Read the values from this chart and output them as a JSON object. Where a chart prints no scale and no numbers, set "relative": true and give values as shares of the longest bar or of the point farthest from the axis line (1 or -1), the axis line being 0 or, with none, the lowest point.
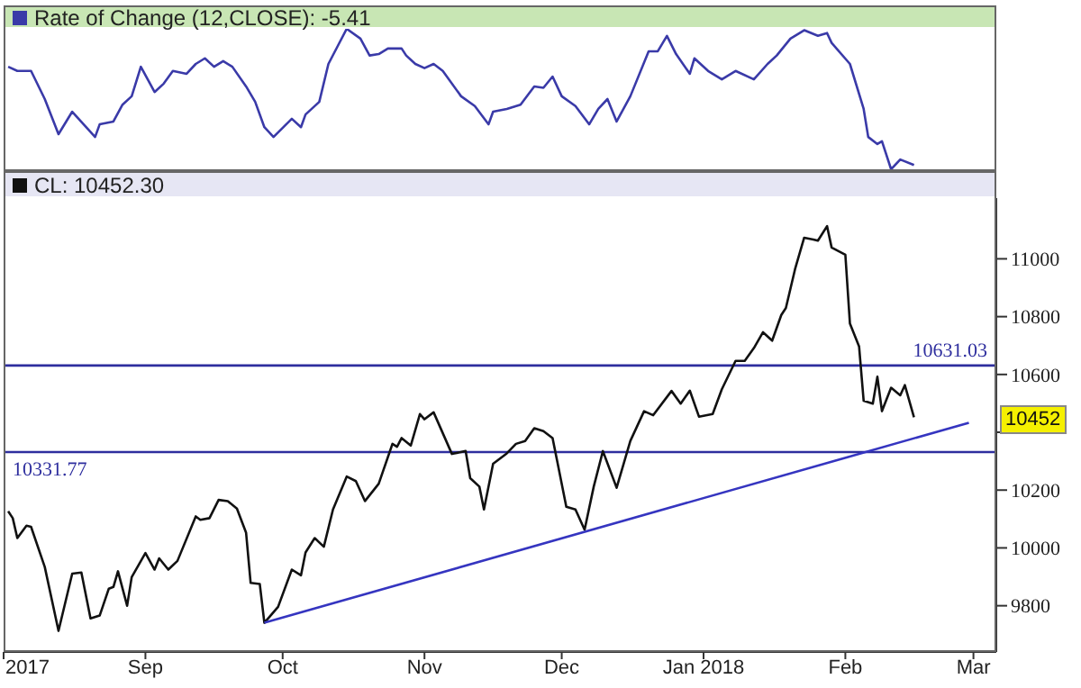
{
  "chart_data": [
    {
      "type": "line",
      "title": "Rate of Change (12,CLOSE): -5.41",
      "relative": true,
      "xlim": [
        "2017-08-01",
        "2018-03-06"
      ],
      "series": [
        {
          "color": "#3a3aa8",
          "x": [
            "2017-08-02",
            "2017-08-04",
            "2017-08-07",
            "2017-08-10",
            "2017-08-13",
            "2017-08-16",
            "2017-08-21",
            "2017-08-22",
            "2017-08-25",
            "2017-08-27",
            "2017-08-29",
            "2017-08-31",
            "2017-09-03",
            "2017-09-05",
            "2017-09-07",
            "2017-09-10",
            "2017-09-12",
            "2017-09-14",
            "2017-09-16",
            "2017-09-18",
            "2017-09-20",
            "2017-09-23",
            "2017-09-25",
            "2017-09-27",
            "2017-09-29",
            "2017-10-03",
            "2017-10-05",
            "2017-10-06",
            "2017-10-09",
            "2017-10-11",
            "2017-10-15",
            "2017-10-18",
            "2017-10-20",
            "2017-10-22",
            "2017-10-24",
            "2017-10-27",
            "2017-10-28",
            "2017-10-30",
            "2017-11-01",
            "2017-11-03",
            "2017-11-05",
            "2017-11-09",
            "2017-11-12",
            "2017-11-15",
            "2017-11-16",
            "2017-11-19",
            "2017-11-22",
            "2017-11-25",
            "2017-11-27",
            "2017-11-29",
            "2017-12-01",
            "2017-12-04",
            "2017-12-07",
            "2017-12-09",
            "2017-12-11",
            "2017-12-13",
            "2017-12-16",
            "2017-12-20",
            "2017-12-22",
            "2017-12-24",
            "2017-12-26",
            "2017-12-29",
            "2017-12-30",
            "2018-01-02",
            "2018-01-05",
            "2018-01-08",
            "2018-01-12",
            "2018-01-15",
            "2018-01-17",
            "2018-01-20",
            "2018-01-23",
            "2018-01-26",
            "2018-01-28",
            "2018-01-29",
            "2018-02-02",
            "2018-02-05",
            "2018-02-06",
            "2018-02-08",
            "2018-02-09",
            "2018-02-11",
            "2018-02-13",
            "2018-02-16"
          ],
          "values": [
            0.73,
            0.7,
            0.7,
            0.5,
            0.25,
            0.41,
            0.23,
            0.32,
            0.34,
            0.46,
            0.52,
            0.73,
            0.55,
            0.61,
            0.7,
            0.68,
            0.75,
            0.79,
            0.73,
            0.77,
            0.73,
            0.59,
            0.48,
            0.3,
            0.23,
            0.36,
            0.3,
            0.39,
            0.48,
            0.75,
            1.0,
            0.93,
            0.81,
            0.82,
            0.86,
            0.86,
            0.81,
            0.75,
            0.72,
            0.75,
            0.7,
            0.52,
            0.45,
            0.32,
            0.41,
            0.43,
            0.46,
            0.59,
            0.58,
            0.66,
            0.52,
            0.45,
            0.32,
            0.43,
            0.5,
            0.34,
            0.52,
            0.84,
            0.84,
            0.95,
            0.82,
            0.68,
            0.79,
            0.7,
            0.64,
            0.7,
            0.64,
            0.75,
            0.81,
            0.93,
            0.99,
            0.95,
            0.97,
            0.9,
            0.75,
            0.43,
            0.23,
            0.18,
            0.2,
            0,
            0.07,
            0.03
          ]
        }
      ]
    },
    {
      "type": "line",
      "title": "CL: 10452.30",
      "xlim": [
        "2017-08-01",
        "2018-03-06"
      ],
      "ylim": [
        9640,
        11210
      ],
      "yticks": [
        9800,
        10000,
        10200,
        {
          "value": 10400,
          "label": null
        },
        10600,
        10800,
        11000
      ],
      "xticks": [
        {
          "value": "2017-08-01",
          "label": "2017"
        },
        {
          "value": "2017-09-01",
          "label": "Sep"
        },
        {
          "value": "2017-10-01",
          "label": "Oct"
        },
        {
          "value": "2017-11-01",
          "label": "Nov"
        },
        {
          "value": "2017-12-01",
          "label": "Dec"
        },
        {
          "value": "2018-01-01",
          "label": "Jan 2018"
        },
        {
          "value": "2018-02-01",
          "label": "Feb"
        },
        {
          "value": "2018-03-01",
          "label": "Mar"
        }
      ],
      "series": [
        {
          "color": "#111111",
          "x": [
            "2017-08-02",
            "2017-08-03",
            "2017-08-04",
            "2017-08-06",
            "2017-08-07",
            "2017-08-10",
            "2017-08-13",
            "2017-08-16",
            "2017-08-18",
            "2017-08-20",
            "2017-08-22",
            "2017-08-24",
            "2017-08-25",
            "2017-08-26",
            "2017-08-28",
            "2017-08-29",
            "2017-09-01",
            "2017-09-03",
            "2017-09-04",
            "2017-09-06",
            "2017-09-08",
            "2017-09-12",
            "2017-09-13",
            "2017-09-15",
            "2017-09-17",
            "2017-09-19",
            "2017-09-21",
            "2017-09-23",
            "2017-09-24",
            "2017-09-26",
            "2017-09-27",
            "2017-09-30",
            "2017-10-03",
            "2017-10-05",
            "2017-10-06",
            "2017-10-08",
            "2017-10-10",
            "2017-10-12",
            "2017-10-15",
            "2017-10-17",
            "2017-10-19",
            "2017-10-22",
            "2017-10-25",
            "2017-10-26",
            "2017-10-27",
            "2017-10-29",
            "2017-10-31",
            "2017-11-01",
            "2017-11-03",
            "2017-11-07",
            "2017-11-10",
            "2017-11-11",
            "2017-11-13",
            "2017-11-14",
            "2017-11-16",
            "2017-11-19",
            "2017-11-21",
            "2017-11-23",
            "2017-11-25",
            "2017-11-27",
            "2017-11-29",
            "2017-11-30",
            "2017-12-02",
            "2017-12-04",
            "2017-12-06",
            "2017-12-08",
            "2017-12-10",
            "2017-12-13",
            "2017-12-16",
            "2017-12-19",
            "2017-12-21",
            "2017-12-25",
            "2017-12-27",
            "2017-12-29",
            "2017-12-31",
            "2018-01-03",
            "2018-01-05",
            "2018-01-08",
            "2018-01-10",
            "2018-01-12",
            "2018-01-14",
            "2018-01-16",
            "2018-01-18",
            "2018-01-19",
            "2018-01-21",
            "2018-01-23",
            "2018-01-25",
            "2018-01-26",
            "2018-01-28",
            "2018-01-29",
            "2018-02-01",
            "2018-02-02",
            "2018-02-04",
            "2018-02-05",
            "2018-02-07",
            "2018-02-08",
            "2018-02-09",
            "2018-02-11",
            "2018-02-13",
            "2018-02-14",
            "2018-02-16"
          ],
          "values": [
            10127,
            10103,
            10034,
            10077,
            10073,
            9934,
            9713,
            9911,
            9915,
            9756,
            9766,
            9859,
            9865,
            9919,
            9800,
            9899,
            9982,
            9925,
            9964,
            9925,
            9955,
            10109,
            10097,
            10103,
            10166,
            10162,
            10136,
            10053,
            9879,
            9875,
            9741,
            9796,
            9925,
            9905,
            9984,
            10034,
            10004,
            10133,
            10247,
            10231,
            10162,
            10222,
            10360,
            10350,
            10380,
            10354,
            10463,
            10445,
            10469,
            10325,
            10335,
            10241,
            10212,
            10133,
            10291,
            10327,
            10360,
            10370,
            10414,
            10404,
            10380,
            10301,
            10142,
            10133,
            10063,
            10212,
            10335,
            10208,
            10370,
            10473,
            10459,
            10543,
            10499,
            10544,
            10454,
            10463,
            10549,
            10647,
            10647,
            10691,
            10746,
            10717,
            10806,
            10830,
            10964,
            11073,
            11067,
            11063,
            11113,
            11039,
            11014,
            10776,
            10697,
            10509,
            10499,
            10592,
            10473,
            10554,
            10528,
            10563,
            10452
          ]
        },
        {
          "type": "line",
          "color": "#3535c0",
          "x": [
            "2017-09-27",
            "2018-02-28"
          ],
          "values": [
            9741,
            10433
          ]
        }
      ],
      "ref_lines": [
        {
          "axis": "y",
          "value": 10631.03,
          "label": "10631.03",
          "color": "#2e2e9e"
        },
        {
          "axis": "y",
          "value": 10331.77,
          "label": "10331.77",
          "color": "#2e2e9e"
        }
      ],
      "annotations": [
        {
          "text": "10452",
          "y": 10452
        }
      ]
    }
  ]
}
